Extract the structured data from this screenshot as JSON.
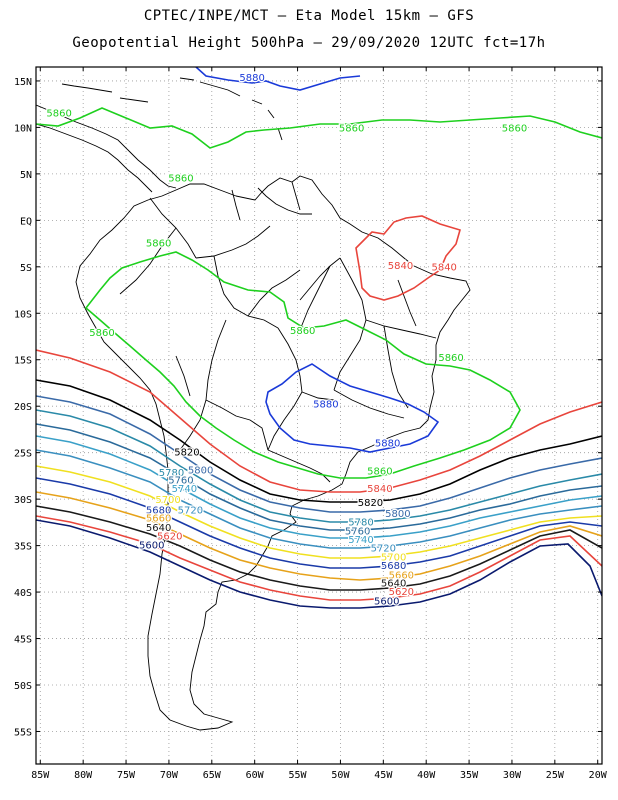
{
  "title": {
    "line1": "CPTEC/INPE/MCT –  Eta Model 15km – GFS",
    "line2": "Geopotential Height 500hPa – 29/09/2020 12UTC fct=17h"
  },
  "axes": {
    "lon_range": [
      -85.5,
      -19.5
    ],
    "lat_range": [
      -58.5,
      16.5
    ],
    "lon_labels": [
      "85W",
      "80W",
      "75W",
      "70W",
      "65W",
      "60W",
      "55W",
      "50W",
      "45W",
      "40W",
      "35W",
      "30W",
      "25W",
      "20W"
    ],
    "lat_labels": [
      "15N",
      "10N",
      "5N",
      "EQ",
      "5S",
      "10S",
      "15S",
      "20S",
      "25S",
      "30S",
      "35S",
      "40S",
      "45S",
      "50S",
      "55S"
    ]
  },
  "colors": {
    "c5600": "#0a1a6e",
    "c5620": "#e8453c",
    "c5640": "#1a1a1a",
    "c5660": "#e6a21a",
    "c5680": "#1a3aa8",
    "c5700": "#f0e020",
    "c5720": "#3a8fbf",
    "c5740": "#3aa0c8",
    "c5760": "#2a6a9a",
    "c5780": "#2a8aa8",
    "c5800": "#3a6aa8",
    "c5820": "#000000",
    "c5840": "#e8453c",
    "c5860": "#1ed01e",
    "c5880": "#1a3ad8",
    "coast": "#000000"
  },
  "contour_labels": [
    {
      "text": "5880",
      "lon": -51.7,
      "lat": -19.8,
      "key": "c5880"
    },
    {
      "text": "5880",
      "lon": -44.5,
      "lat": -24.0,
      "key": "c5880"
    },
    {
      "text": "5880",
      "lon": -60.3,
      "lat": 15.3,
      "key": "c5880"
    },
    {
      "text": "5860",
      "lon": -82.8,
      "lat": 11.5,
      "key": "c5860"
    },
    {
      "text": "5860",
      "lon": -48.7,
      "lat": 9.9,
      "key": "c5860"
    },
    {
      "text": "5860",
      "lon": -29.7,
      "lat": 9.9,
      "key": "c5860"
    },
    {
      "text": "5860",
      "lon": -68.6,
      "lat": 4.5,
      "key": "c5860"
    },
    {
      "text": "5860",
      "lon": -71.2,
      "lat": -2.5,
      "key": "c5860"
    },
    {
      "text": "5860",
      "lon": -77.8,
      "lat": -12.1,
      "key": "c5860"
    },
    {
      "text": "5860",
      "lon": -54.4,
      "lat": -11.9,
      "key": "c5860"
    },
    {
      "text": "5860",
      "lon": -37.1,
      "lat": -14.8,
      "key": "c5860"
    },
    {
      "text": "5860",
      "lon": -45.4,
      "lat": -27.0,
      "key": "c5860"
    },
    {
      "text": "5840",
      "lon": -43.0,
      "lat": -4.9,
      "key": "c5840"
    },
    {
      "text": "5840",
      "lon": -37.9,
      "lat": -5.1,
      "key": "c5840"
    },
    {
      "text": "5840",
      "lon": -45.4,
      "lat": -28.9,
      "key": "c5840"
    },
    {
      "text": "5820",
      "lon": -67.9,
      "lat": -25.0,
      "key": "c5820"
    },
    {
      "text": "5820",
      "lon": -46.5,
      "lat": -30.4,
      "key": "c5820"
    },
    {
      "text": "5800",
      "lon": -66.3,
      "lat": -26.9,
      "key": "c5800"
    },
    {
      "text": "5800",
      "lon": -43.3,
      "lat": -31.6,
      "key": "c5800"
    },
    {
      "text": "5780",
      "lon": -69.7,
      "lat": -27.2,
      "key": "c5780"
    },
    {
      "text": "5780",
      "lon": -47.6,
      "lat": -32.5,
      "key": "c5780"
    },
    {
      "text": "5760",
      "lon": -68.6,
      "lat": -28.0,
      "key": "c5760"
    },
    {
      "text": "5760",
      "lon": -48.0,
      "lat": -33.5,
      "key": "c5760"
    },
    {
      "text": "5740",
      "lon": -68.2,
      "lat": -28.9,
      "key": "c5740"
    },
    {
      "text": "5740",
      "lon": -47.6,
      "lat": -34.4,
      "key": "c5740"
    },
    {
      "text": "5720",
      "lon": -67.5,
      "lat": -31.2,
      "key": "c5720"
    },
    {
      "text": "5720",
      "lon": -45.0,
      "lat": -35.3,
      "key": "c5720"
    },
    {
      "text": "5700",
      "lon": -70.1,
      "lat": -30.1,
      "key": "c5700"
    },
    {
      "text": "5700",
      "lon": -43.8,
      "lat": -36.3,
      "key": "c5700"
    },
    {
      "text": "5680",
      "lon": -71.2,
      "lat": -31.2,
      "key": "c5680"
    },
    {
      "text": "5680",
      "lon": -43.8,
      "lat": -37.2,
      "key": "c5680"
    },
    {
      "text": "5660",
      "lon": -71.2,
      "lat": -32.1,
      "key": "c5660"
    },
    {
      "text": "5660",
      "lon": -42.9,
      "lat": -38.2,
      "key": "c5660"
    },
    {
      "text": "5640",
      "lon": -71.2,
      "lat": -33.1,
      "key": "c5640"
    },
    {
      "text": "5640",
      "lon": -43.8,
      "lat": -39.1,
      "key": "c5640"
    },
    {
      "text": "5620",
      "lon": -69.9,
      "lat": -34.0,
      "key": "c5620"
    },
    {
      "text": "5620",
      "lon": -42.9,
      "lat": -40.0,
      "key": "c5620"
    },
    {
      "text": "5600",
      "lon": -72.0,
      "lat": -35.0,
      "key": "c5600"
    },
    {
      "text": "5600",
      "lon": -44.6,
      "lat": -41.0,
      "key": "c5600"
    }
  ]
}
